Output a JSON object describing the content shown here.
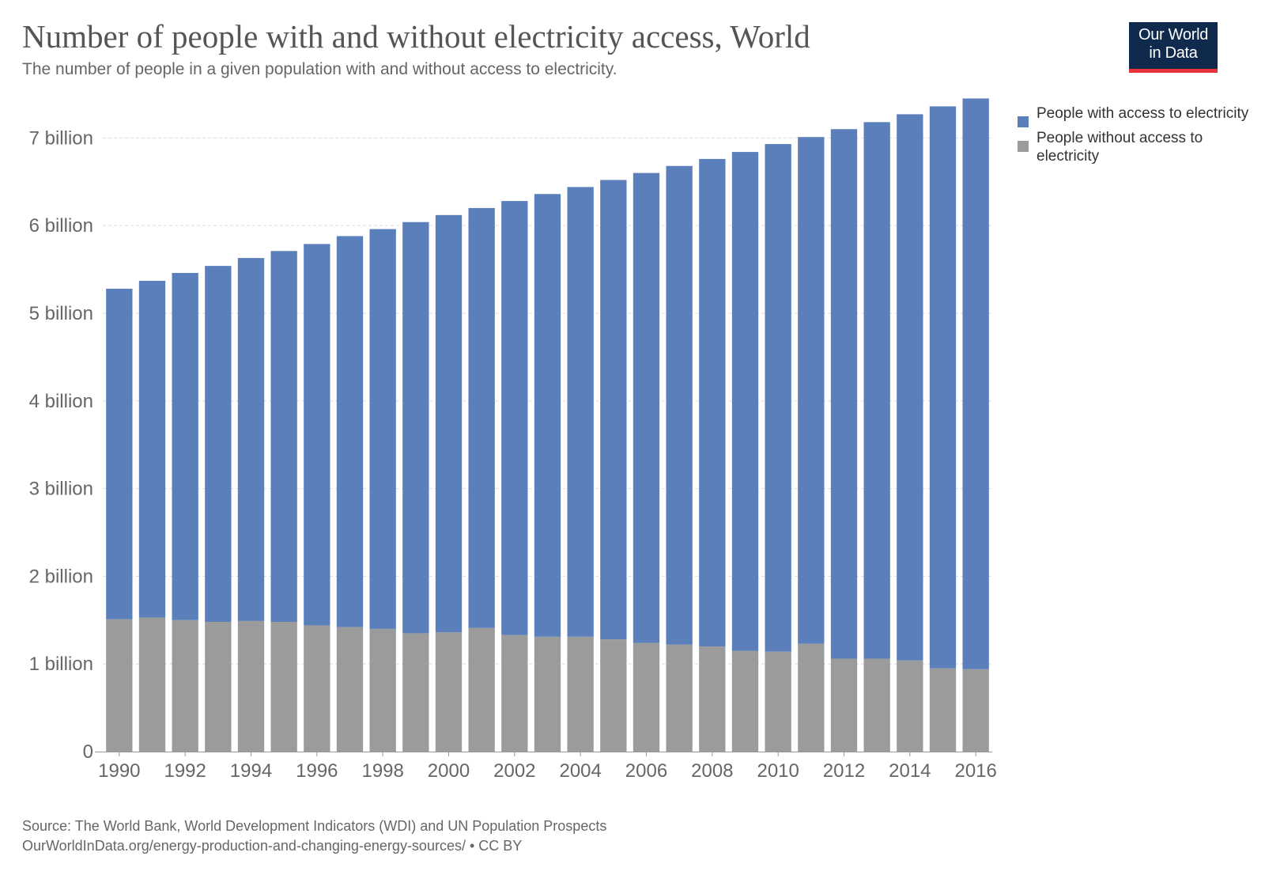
{
  "title": "Number of people with and without electricity access, World",
  "subtitle": "The number of people in a given population with and without access to electricity.",
  "logo": {
    "line1": "Our World",
    "line2": "in Data",
    "bg_color": "#0f2a4d",
    "accent_color": "#e8333a"
  },
  "legend": [
    {
      "label": "People with access to electricity",
      "color": "#5b7fba"
    },
    {
      "label": "People without access to electricity",
      "color": "#9b9b9b"
    }
  ],
  "source": "Source: The World Bank, World Development Indicators (WDI) and UN Population Prospects",
  "url": "OurWorldInData.org/energy-production-and-changing-energy-sources/ • CC BY",
  "chart_data": {
    "type": "bar",
    "stacked": true,
    "categories": [
      1990,
      1991,
      1992,
      1993,
      1994,
      1995,
      1996,
      1997,
      1998,
      1999,
      2000,
      2001,
      2002,
      2003,
      2004,
      2005,
      2006,
      2007,
      2008,
      2009,
      2010,
      2011,
      2012,
      2013,
      2014,
      2015,
      2016
    ],
    "x_tick_labels": [
      "1990",
      "1992",
      "1994",
      "1996",
      "1998",
      "2000",
      "2002",
      "2004",
      "2006",
      "2008",
      "2010",
      "2012",
      "2014",
      "2016"
    ],
    "series": [
      {
        "name": "People without access to electricity",
        "color": "#9b9b9b",
        "values": [
          1.51,
          1.53,
          1.5,
          1.48,
          1.49,
          1.48,
          1.44,
          1.42,
          1.4,
          1.35,
          1.36,
          1.41,
          1.33,
          1.31,
          1.31,
          1.28,
          1.24,
          1.22,
          1.2,
          1.15,
          1.14,
          1.23,
          1.06,
          1.06,
          1.04,
          0.95,
          0.94
        ]
      },
      {
        "name": "People with access to electricity",
        "color": "#5b7fba",
        "values": [
          3.77,
          3.84,
          3.96,
          4.06,
          4.14,
          4.23,
          4.35,
          4.46,
          4.56,
          4.69,
          4.76,
          4.79,
          4.95,
          5.05,
          5.13,
          5.24,
          5.36,
          5.46,
          5.56,
          5.69,
          5.79,
          5.78,
          6.04,
          6.12,
          6.23,
          6.41,
          6.51
        ]
      }
    ],
    "ylim": [
      0,
      7.4
    ],
    "y_ticks": [
      {
        "value": 0,
        "label": "0"
      },
      {
        "value": 1,
        "label": "1 billion"
      },
      {
        "value": 2,
        "label": "2 billion"
      },
      {
        "value": 3,
        "label": "3 billion"
      },
      {
        "value": 4,
        "label": "4 billion"
      },
      {
        "value": 5,
        "label": "5 billion"
      },
      {
        "value": 6,
        "label": "6 billion"
      },
      {
        "value": 7,
        "label": "7 billion"
      }
    ],
    "grid": true,
    "legend_position": "right",
    "xlabel": "",
    "ylabel": ""
  }
}
